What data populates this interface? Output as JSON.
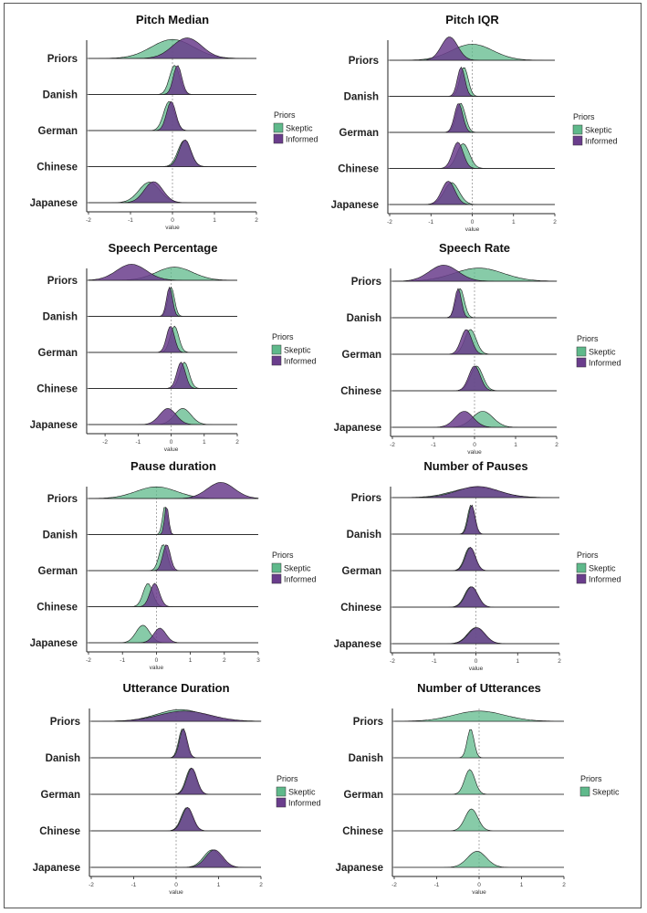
{
  "chart_data": [
    {
      "type": "ridgeline",
      "title": "Pitch Median",
      "xlabel": "value",
      "categories": [
        "Priors",
        "Danish",
        "German",
        "Chinese",
        "Japanese"
      ],
      "xlim": [
        -2,
        2
      ],
      "xticks": [
        "-2",
        "-1",
        "0",
        "1",
        "2"
      ],
      "legend": {
        "title": "Priors",
        "entries": [
          "Skeptic",
          "Informed"
        ],
        "position": "right"
      },
      "series": [
        {
          "name": "Skeptic",
          "values": [
            {
              "mu": 0.0,
              "sd": 0.5,
              "h": 0.65
            },
            {
              "mu": 0.05,
              "sd": 0.12,
              "h": 1
            },
            {
              "mu": -0.08,
              "sd": 0.13,
              "h": 1
            },
            {
              "mu": 0.28,
              "sd": 0.15,
              "h": 0.9
            },
            {
              "mu": -0.55,
              "sd": 0.25,
              "h": 0.7
            }
          ]
        },
        {
          "name": "Informed",
          "values": [
            {
              "mu": 0.35,
              "sd": 0.35,
              "h": 0.7
            },
            {
              "mu": 0.12,
              "sd": 0.1,
              "h": 1
            },
            {
              "mu": -0.03,
              "sd": 0.11,
              "h": 1
            },
            {
              "mu": 0.3,
              "sd": 0.14,
              "h": 0.92
            },
            {
              "mu": -0.45,
              "sd": 0.22,
              "h": 0.72
            }
          ]
        }
      ]
    },
    {
      "type": "ridgeline",
      "title": "Pitch IQR",
      "xlabel": "value",
      "categories": [
        "Priors",
        "Danish",
        "German",
        "Chinese",
        "Japanese"
      ],
      "xlim": [
        -2,
        2
      ],
      "xticks": [
        "-2",
        "-1",
        "0",
        "1",
        "2"
      ],
      "legend": {
        "title": "Priors",
        "entries": [
          "Skeptic",
          "Informed"
        ],
        "position": "right"
      },
      "series": [
        {
          "name": "Skeptic",
          "values": [
            {
              "mu": 0.0,
              "sd": 0.5,
              "h": 0.55
            },
            {
              "mu": -0.2,
              "sd": 0.1,
              "h": 1
            },
            {
              "mu": -0.28,
              "sd": 0.11,
              "h": 1
            },
            {
              "mu": -0.22,
              "sd": 0.15,
              "h": 0.85
            },
            {
              "mu": -0.5,
              "sd": 0.18,
              "h": 0.75
            }
          ]
        },
        {
          "name": "Informed",
          "values": [
            {
              "mu": -0.55,
              "sd": 0.2,
              "h": 0.8
            },
            {
              "mu": -0.27,
              "sd": 0.09,
              "h": 1
            },
            {
              "mu": -0.33,
              "sd": 0.1,
              "h": 1
            },
            {
              "mu": -0.35,
              "sd": 0.13,
              "h": 0.9
            },
            {
              "mu": -0.58,
              "sd": 0.16,
              "h": 0.8
            }
          ]
        }
      ]
    },
    {
      "type": "ridgeline",
      "title": "Speech Percentage",
      "xlabel": "value",
      "categories": [
        "Priors",
        "Danish",
        "German",
        "Chinese",
        "Japanese"
      ],
      "xlim": [
        -2.5,
        2
      ],
      "xticks": [
        "-2",
        "-1",
        "0",
        "1",
        "2"
      ],
      "legend": {
        "title": "Priors",
        "entries": [
          "Skeptic",
          "Informed"
        ],
        "position": "right"
      },
      "series": [
        {
          "name": "Skeptic",
          "values": [
            {
              "mu": 0.1,
              "sd": 0.55,
              "h": 0.45
            },
            {
              "mu": 0.0,
              "sd": 0.1,
              "h": 1
            },
            {
              "mu": 0.1,
              "sd": 0.13,
              "h": 0.9
            },
            {
              "mu": 0.4,
              "sd": 0.14,
              "h": 0.9
            },
            {
              "mu": 0.35,
              "sd": 0.25,
              "h": 0.55
            }
          ]
        },
        {
          "name": "Informed",
          "values": [
            {
              "mu": -1.2,
              "sd": 0.45,
              "h": 0.55
            },
            {
              "mu": -0.05,
              "sd": 0.09,
              "h": 1
            },
            {
              "mu": -0.02,
              "sd": 0.12,
              "h": 0.9
            },
            {
              "mu": 0.3,
              "sd": 0.13,
              "h": 0.9
            },
            {
              "mu": -0.1,
              "sd": 0.25,
              "h": 0.55
            }
          ]
        }
      ]
    },
    {
      "type": "ridgeline",
      "title": "Speech Rate",
      "xlabel": "value",
      "categories": [
        "Priors",
        "Danish",
        "German",
        "Chinese",
        "Japanese"
      ],
      "xlim": [
        -2,
        2
      ],
      "xticks": [
        "-2",
        "-1",
        "0",
        "1",
        "2"
      ],
      "legend": {
        "title": "Priors",
        "entries": [
          "Skeptic",
          "Informed"
        ],
        "position": "right"
      },
      "series": [
        {
          "name": "Skeptic",
          "values": [
            {
              "mu": 0.1,
              "sd": 0.6,
              "h": 0.45
            },
            {
              "mu": -0.35,
              "sd": 0.1,
              "h": 1
            },
            {
              "mu": -0.1,
              "sd": 0.14,
              "h": 0.85
            },
            {
              "mu": 0.05,
              "sd": 0.15,
              "h": 0.85
            },
            {
              "mu": 0.2,
              "sd": 0.25,
              "h": 0.55
            }
          ]
        },
        {
          "name": "Informed",
          "values": [
            {
              "mu": -0.75,
              "sd": 0.35,
              "h": 0.55
            },
            {
              "mu": -0.4,
              "sd": 0.08,
              "h": 1
            },
            {
              "mu": -0.2,
              "sd": 0.13,
              "h": 0.85
            },
            {
              "mu": 0.0,
              "sd": 0.14,
              "h": 0.85
            },
            {
              "mu": -0.25,
              "sd": 0.22,
              "h": 0.55
            }
          ]
        }
      ]
    },
    {
      "type": "ridgeline",
      "title": "Pause duration",
      "xlabel": "value",
      "categories": [
        "Priors",
        "Danish",
        "German",
        "Chinese",
        "Japanese"
      ],
      "xlim": [
        -2,
        3
      ],
      "xticks": [
        "-2",
        "-1",
        "0",
        "1",
        "2",
        "3"
      ],
      "legend": {
        "title": "Priors",
        "entries": [
          "Skeptic",
          "Informed"
        ],
        "position": "right"
      },
      "series": [
        {
          "name": "Skeptic",
          "values": [
            {
              "mu": 0.0,
              "sd": 0.6,
              "h": 0.4
            },
            {
              "mu": 0.25,
              "sd": 0.07,
              "h": 1
            },
            {
              "mu": 0.2,
              "sd": 0.12,
              "h": 0.9
            },
            {
              "mu": -0.25,
              "sd": 0.14,
              "h": 0.8
            },
            {
              "mu": -0.4,
              "sd": 0.2,
              "h": 0.6
            }
          ]
        },
        {
          "name": "Informed",
          "values": [
            {
              "mu": 1.9,
              "sd": 0.4,
              "h": 0.55
            },
            {
              "mu": 0.3,
              "sd": 0.06,
              "h": 1
            },
            {
              "mu": 0.3,
              "sd": 0.11,
              "h": 0.9
            },
            {
              "mu": -0.05,
              "sd": 0.14,
              "h": 0.8
            },
            {
              "mu": 0.1,
              "sd": 0.18,
              "h": 0.5
            }
          ]
        }
      ]
    },
    {
      "type": "ridgeline",
      "title": "Number of Pauses",
      "xlabel": "value",
      "categories": [
        "Priors",
        "Danish",
        "German",
        "Chinese",
        "Japanese"
      ],
      "xlim": [
        -2,
        2
      ],
      "xticks": [
        "-2",
        "-1",
        "0",
        "1",
        "2"
      ],
      "legend": {
        "title": "Priors",
        "entries": [
          "Skeptic",
          "Informed"
        ],
        "position": "right"
      },
      "series": [
        {
          "name": "Skeptic",
          "values": [
            {
              "mu": 0.0,
              "sd": 0.55,
              "h": 0.35
            },
            {
              "mu": -0.12,
              "sd": 0.08,
              "h": 1
            },
            {
              "mu": -0.15,
              "sd": 0.12,
              "h": 0.8
            },
            {
              "mu": -0.12,
              "sd": 0.15,
              "h": 0.7
            },
            {
              "mu": 0.0,
              "sd": 0.2,
              "h": 0.55
            }
          ]
        },
        {
          "name": "Informed",
          "values": [
            {
              "mu": 0.05,
              "sd": 0.5,
              "h": 0.38
            },
            {
              "mu": -0.1,
              "sd": 0.08,
              "h": 1
            },
            {
              "mu": -0.13,
              "sd": 0.12,
              "h": 0.8
            },
            {
              "mu": -0.1,
              "sd": 0.15,
              "h": 0.7
            },
            {
              "mu": 0.02,
              "sd": 0.2,
              "h": 0.55
            }
          ]
        }
      ]
    },
    {
      "type": "ridgeline",
      "title": "Utterance Duration",
      "xlabel": "value",
      "categories": [
        "Priors",
        "Danish",
        "German",
        "Chinese",
        "Japanese"
      ],
      "xlim": [
        -2,
        2
      ],
      "xticks": [
        "-2",
        "-1",
        "0",
        "1",
        "2"
      ],
      "legend": {
        "title": "Priors",
        "entries": [
          "Skeptic",
          "Informed"
        ],
        "position": "right"
      },
      "series": [
        {
          "name": "Skeptic",
          "values": [
            {
              "mu": 0.1,
              "sd": 0.55,
              "h": 0.4
            },
            {
              "mu": 0.15,
              "sd": 0.09,
              "h": 1
            },
            {
              "mu": 0.35,
              "sd": 0.12,
              "h": 0.9
            },
            {
              "mu": 0.25,
              "sd": 0.13,
              "h": 0.8
            },
            {
              "mu": 0.85,
              "sd": 0.2,
              "h": 0.6
            }
          ]
        },
        {
          "name": "Informed",
          "values": [
            {
              "mu": 0.2,
              "sd": 0.6,
              "h": 0.35
            },
            {
              "mu": 0.17,
              "sd": 0.09,
              "h": 1
            },
            {
              "mu": 0.37,
              "sd": 0.12,
              "h": 0.9
            },
            {
              "mu": 0.27,
              "sd": 0.13,
              "h": 0.8
            },
            {
              "mu": 0.9,
              "sd": 0.2,
              "h": 0.6
            }
          ]
        }
      ]
    },
    {
      "type": "ridgeline",
      "title": "Number of Utterances",
      "xlabel": "value",
      "categories": [
        "Priors",
        "Danish",
        "German",
        "Chinese",
        "Japanese"
      ],
      "xlim": [
        -2,
        2
      ],
      "xticks": [
        "-2",
        "-1",
        "0",
        "1",
        "2"
      ],
      "legend": {
        "title": "Priors",
        "entries": [
          "Skeptic"
        ],
        "position": "right"
      },
      "series": [
        {
          "name": "Skeptic",
          "values": [
            {
              "mu": 0.0,
              "sd": 0.6,
              "h": 0.35
            },
            {
              "mu": -0.2,
              "sd": 0.08,
              "h": 1
            },
            {
              "mu": -0.22,
              "sd": 0.12,
              "h": 0.85
            },
            {
              "mu": -0.18,
              "sd": 0.15,
              "h": 0.75
            },
            {
              "mu": -0.05,
              "sd": 0.22,
              "h": 0.55
            }
          ]
        }
      ]
    }
  ],
  "colors": {
    "Skeptic": "#5fb98b",
    "Informed": "#6a3d8c",
    "overlap": "#2f7d5c"
  }
}
